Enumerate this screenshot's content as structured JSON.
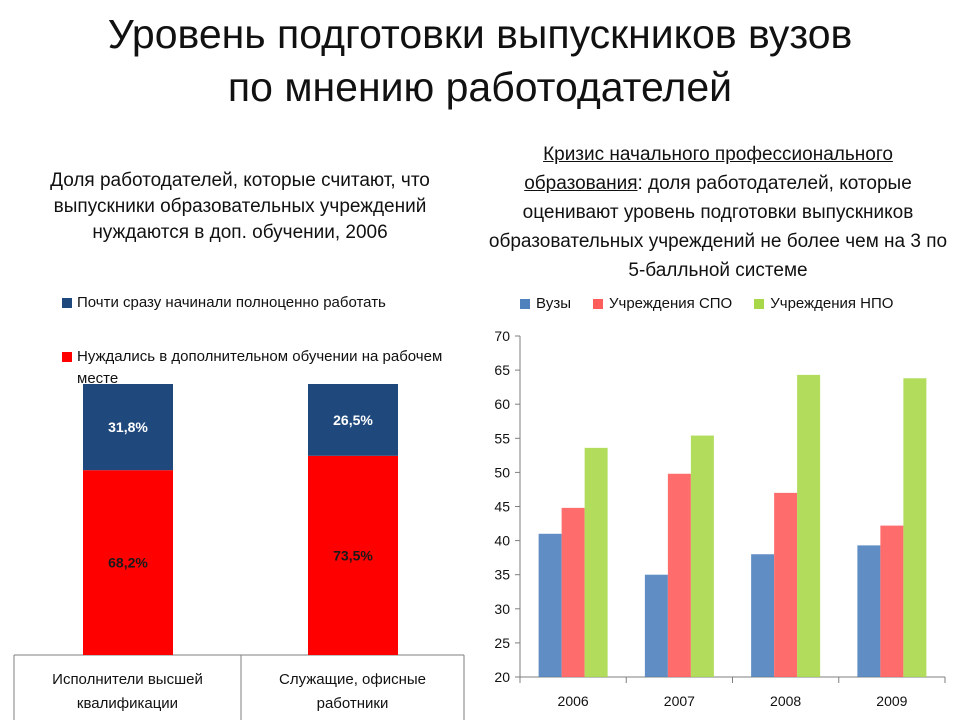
{
  "title_line1": "Уровень подготовки выпускников вузов",
  "title_line2": "по мнению работодателей",
  "left_caption": "Доля работодателей, которые считают, что выпускники образовательных учреждений нуждаются в доп. обучении, 2006",
  "right_caption_underlined": "Кризис начального профессионального образования",
  "right_caption_rest": ": доля работодателей, которые оценивают уровень подготовки выпускников образовательных учреждений не более чем на 3 по 5-балльной системе",
  "chart_data": [
    {
      "type": "bar",
      "stacked": true,
      "categories": [
        "Исполнители высшей квалификации",
        "Служащие, офисные работники"
      ],
      "series": [
        {
          "name": "Нуждались в дополнительном обучении на рабочем месте",
          "color": "#ff0000",
          "values": [
            68.2,
            73.5
          ],
          "labels": [
            "68,2%",
            "73,5%"
          ]
        },
        {
          "name": "Почти сразу начинали полноценно работать",
          "color": "#1f497d",
          "values": [
            31.8,
            26.5
          ],
          "labels": [
            "31,8%",
            "26,5%"
          ]
        }
      ],
      "legend_order": [
        "Почти сразу начинали полноценно работать",
        "Нуждались в дополнительном обучении на рабочем месте"
      ]
    },
    {
      "type": "bar",
      "categories": [
        "2006",
        "2007",
        "2008",
        "2009"
      ],
      "series": [
        {
          "name": "Вузы",
          "color": "#4f81bd",
          "values": [
            41,
            35,
            38,
            39.3
          ]
        },
        {
          "name": "Учреждения СПО",
          "color": "#ff5c5c",
          "values": [
            44.8,
            49.8,
            47,
            42.2
          ]
        },
        {
          "name": "Учреждения НПО",
          "color": "#a8d84a",
          "values": [
            53.6,
            55.4,
            64.3,
            63.8
          ]
        }
      ],
      "ylim": [
        20,
        70
      ],
      "yticks": [
        "20",
        "25",
        "30",
        "35",
        "40",
        "45",
        "50",
        "55",
        "60",
        "65",
        "70"
      ],
      "grid": false,
      "legend": "top"
    }
  ]
}
